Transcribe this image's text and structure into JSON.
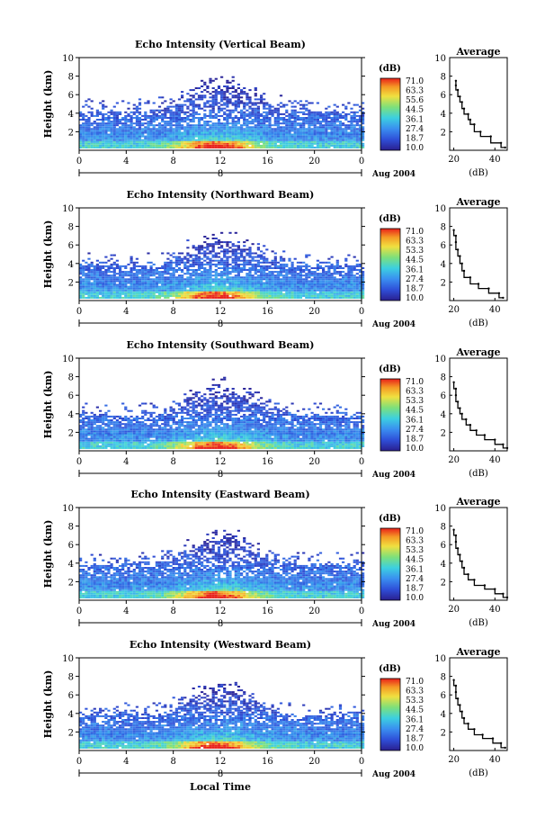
{
  "xlabel": "Local Time",
  "chart_data": [
    {
      "type": "heatmap",
      "title": "Echo Intensity (Vertical Beam)",
      "ylabel": "Height (km)",
      "x_ticks": [
        "0",
        "4",
        "8",
        "12",
        "16",
        "20",
        "0"
      ],
      "y_ticks": [
        "10",
        "8",
        "6",
        "4",
        "2"
      ],
      "xlim": [
        0,
        24
      ],
      "ylim": [
        0,
        10
      ],
      "date_label": "Aug 2004",
      "day_label": "8",
      "colorbar": {
        "unit": "(dB)",
        "ticks": [
          "71.0",
          "63.3",
          "55.6",
          "44.5",
          "36.1",
          "27.4",
          "18.7",
          "10.0"
        ],
        "range": [
          10.0,
          71.0
        ]
      },
      "average": {
        "title": "Average",
        "xlabel": "(dB)",
        "x_ticks": [
          "20",
          "40"
        ],
        "y_ticks": [
          "10",
          "8",
          "6",
          "4",
          "2"
        ],
        "xlim": [
          18,
          46
        ],
        "x": [
          45,
          43,
          38,
          33,
          30,
          28,
          27,
          25,
          24,
          23,
          22,
          21,
          21
        ],
        "y": [
          0.3,
          0.8,
          1.5,
          2.0,
          2.8,
          3.3,
          3.9,
          4.5,
          5.2,
          5.8,
          6.5,
          7.0,
          7.5
        ]
      }
    },
    {
      "type": "heatmap",
      "title": "Echo Intensity (Northward Beam)",
      "ylabel": "Height (km)",
      "x_ticks": [
        "0",
        "4",
        "8",
        "12",
        "16",
        "20",
        "0"
      ],
      "y_ticks": [
        "10",
        "8",
        "6",
        "4",
        "2"
      ],
      "xlim": [
        0,
        24
      ],
      "ylim": [
        0,
        10
      ],
      "date_label": "Aug 2004",
      "day_label": "8",
      "colorbar": {
        "unit": "(dB)",
        "ticks": [
          "71.0",
          "63.3",
          "53.3",
          "44.5",
          "36.1",
          "27.4",
          "18.7",
          "10.0"
        ],
        "range": [
          10.0,
          71.0
        ]
      },
      "average": {
        "title": "Average",
        "xlabel": "(dB)",
        "x_ticks": [
          "20",
          "40"
        ],
        "y_ticks": [
          "10",
          "8",
          "6",
          "4",
          "2"
        ],
        "xlim": [
          18,
          46
        ],
        "x": [
          44,
          42,
          37,
          32,
          28,
          25,
          24,
          23,
          22,
          21,
          21,
          20
        ],
        "y": [
          0.3,
          0.8,
          1.3,
          1.8,
          2.5,
          3.2,
          4.0,
          4.8,
          5.5,
          6.3,
          7.0,
          7.6
        ]
      }
    },
    {
      "type": "heatmap",
      "title": "Echo Intensity (Southward Beam)",
      "ylabel": "Height (km)",
      "x_ticks": [
        "0",
        "4",
        "8",
        "12",
        "16",
        "20",
        "0"
      ],
      "y_ticks": [
        "10",
        "8",
        "6",
        "4",
        "2"
      ],
      "xlim": [
        0,
        24
      ],
      "ylim": [
        0,
        10
      ],
      "date_label": "Aug 2004",
      "day_label": "8",
      "colorbar": {
        "unit": "(dB)",
        "ticks": [
          "71.0",
          "63.3",
          "53.3",
          "44.5",
          "36.1",
          "27.4",
          "18.7",
          "10.0"
        ],
        "range": [
          10.0,
          71.0
        ]
      },
      "average": {
        "title": "Average",
        "xlabel": "(dB)",
        "x_ticks": [
          "20",
          "40"
        ],
        "y_ticks": [
          "10",
          "8",
          "6",
          "4",
          "2"
        ],
        "xlim": [
          18,
          46
        ],
        "x": [
          46,
          44,
          40,
          35,
          31,
          28,
          26,
          24,
          23,
          22,
          21,
          21,
          20
        ],
        "y": [
          0.3,
          0.7,
          1.2,
          1.7,
          2.2,
          2.8,
          3.4,
          4.0,
          4.6,
          5.3,
          6.0,
          6.7,
          7.4
        ]
      }
    },
    {
      "type": "heatmap",
      "title": "Echo Intensity (Eastward Beam)",
      "ylabel": "Height (km)",
      "x_ticks": [
        "0",
        "4",
        "8",
        "12",
        "16",
        "20",
        "0"
      ],
      "y_ticks": [
        "10",
        "8",
        "6",
        "4",
        "2"
      ],
      "xlim": [
        0,
        24
      ],
      "ylim": [
        0,
        10
      ],
      "date_label": "Aug 2004",
      "day_label": "8",
      "colorbar": {
        "unit": "(dB)",
        "ticks": [
          "71.0",
          "63.3",
          "53.3",
          "44.5",
          "36.1",
          "27.4",
          "18.7",
          "10.0"
        ],
        "range": [
          10.0,
          71.0
        ]
      },
      "average": {
        "title": "Average",
        "xlabel": "(dB)",
        "x_ticks": [
          "20",
          "40"
        ],
        "y_ticks": [
          "10",
          "8",
          "6",
          "4",
          "2"
        ],
        "xlim": [
          18,
          46
        ],
        "x": [
          46,
          44,
          40,
          35,
          30,
          27,
          25,
          24,
          23,
          22,
          21,
          21,
          20
        ],
        "y": [
          0.3,
          0.7,
          1.2,
          1.6,
          2.2,
          2.8,
          3.5,
          4.2,
          4.9,
          5.6,
          6.3,
          7.0,
          7.6
        ]
      }
    },
    {
      "type": "heatmap",
      "title": "Echo Intensity (Westward Beam)",
      "ylabel": "Height (km)",
      "x_ticks": [
        "0",
        "4",
        "8",
        "12",
        "16",
        "20",
        "0"
      ],
      "y_ticks": [
        "10",
        "8",
        "6",
        "4",
        "2"
      ],
      "xlim": [
        0,
        24
      ],
      "ylim": [
        0,
        10
      ],
      "date_label": "Aug 2004",
      "day_label": "8",
      "colorbar": {
        "unit": "(dB)",
        "ticks": [
          "71.0",
          "63.3",
          "53.3",
          "44.5",
          "36.1",
          "27.4",
          "18.7",
          "10.0"
        ],
        "range": [
          10.0,
          71.0
        ]
      },
      "average": {
        "title": "Average",
        "xlabel": "(dB)",
        "x_ticks": [
          "20",
          "40"
        ],
        "y_ticks": [
          "10",
          "8",
          "6",
          "4",
          "2"
        ],
        "xlim": [
          18,
          46
        ],
        "x": [
          45,
          43,
          39,
          34,
          30,
          27,
          25,
          24,
          23,
          22,
          21,
          21,
          20
        ],
        "y": [
          0.3,
          0.8,
          1.3,
          1.7,
          2.3,
          2.9,
          3.5,
          4.2,
          4.9,
          5.6,
          6.3,
          7.0,
          7.6
        ]
      }
    }
  ]
}
